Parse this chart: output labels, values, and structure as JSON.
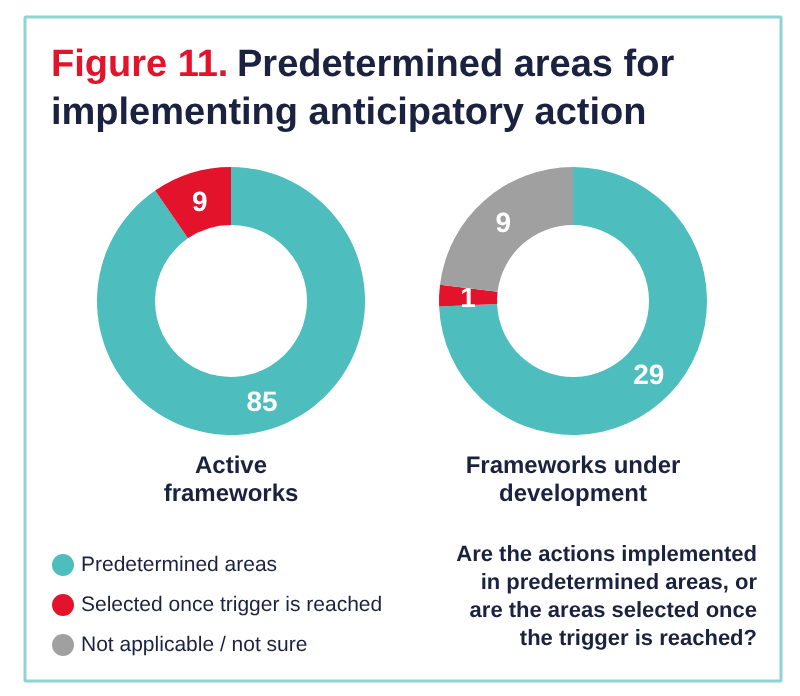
{
  "chart_data": [
    {
      "type": "donut",
      "title": "Figure 11. Predetermined areas for implementing anticipatory action",
      "xlabel": "Active frameworks",
      "categories": [
        "Predetermined areas",
        "Selected once trigger is reached",
        "Not applicable / not sure"
      ],
      "values": [
        85,
        9,
        null
      ],
      "colors": [
        "#4dbdbd",
        "#e3132b",
        "#a0a0a0"
      ],
      "data_labels": true,
      "legend": "bottom left"
    },
    {
      "type": "donut",
      "xlabel": "Frameworks under development",
      "categories": [
        null,
        null,
        null
      ],
      "values": [
        29,
        1,
        9
      ],
      "colors": [
        "#4dbdbd",
        "#e3132b",
        "#a0a0a0"
      ],
      "data_labels": true,
      "annotations": [
        "Are the actions implemented in predetermined areas, or are the areas selected once the trigger is reached?"
      ]
    }
  ]
}
